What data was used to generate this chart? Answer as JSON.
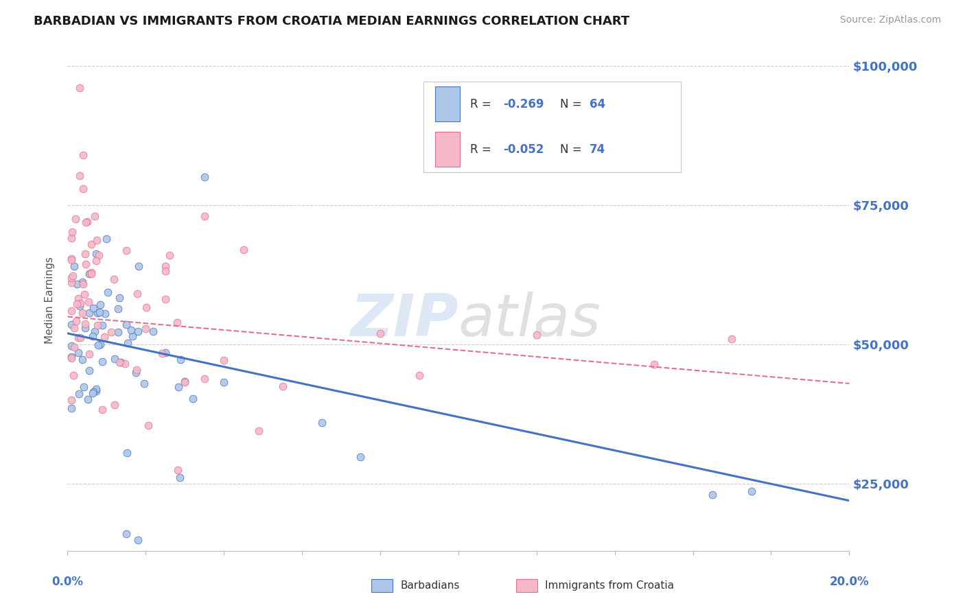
{
  "title": "BARBADIAN VS IMMIGRANTS FROM CROATIA MEDIAN EARNINGS CORRELATION CHART",
  "source": "Source: ZipAtlas.com",
  "ylabel": "Median Earnings",
  "xmin": 0.0,
  "xmax": 0.2,
  "ymin": 13000,
  "ymax": 103000,
  "yticks": [
    25000,
    50000,
    75000,
    100000
  ],
  "ytick_labels": [
    "$25,000",
    "$50,000",
    "$75,000",
    "$100,000"
  ],
  "legend_line1": "R = -0.269   N = 64",
  "legend_line2": "R = -0.052   N = 74",
  "color_barbadian_fill": "#aec6e8",
  "color_barbadian_edge": "#4472c4",
  "color_croatia_fill": "#f4b8c8",
  "color_croatia_edge": "#e07090",
  "color_line_barbadian": "#4472c4",
  "color_line_croatia": "#e07090",
  "color_axis_labels": "#4472c4",
  "watermark_zip_color": "#c8d8f0",
  "watermark_atlas_color": "#c8c8c8",
  "barb_trend_x0": 0.0,
  "barb_trend_y0": 52000,
  "barb_trend_x1": 0.2,
  "barb_trend_y1": 22000,
  "cro_trend_x0": 0.0,
  "cro_trend_y0": 55000,
  "cro_trend_x1": 0.2,
  "cro_trend_y1": 43000
}
